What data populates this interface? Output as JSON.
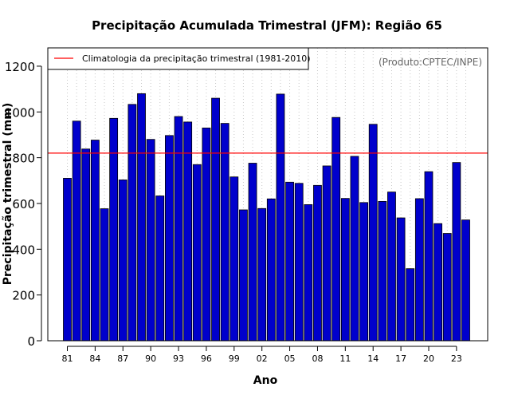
{
  "chart_data": {
    "type": "bar",
    "title": "Precipitação Acumulada Trimestral (JFM): Região 65",
    "xlabel": "Ano",
    "ylabel": "Precipitação trimestral (mm)",
    "ylim": [
      0,
      1280
    ],
    "yticks": [
      0,
      200,
      400,
      600,
      800,
      1000,
      1200
    ],
    "categories": [
      "1981",
      "1982",
      "1983",
      "1984",
      "1985",
      "1986",
      "1987",
      "1988",
      "1989",
      "1990",
      "1991",
      "1992",
      "1993",
      "1994",
      "1995",
      "1996",
      "1997",
      "1998",
      "1999",
      "2000",
      "2001",
      "2002",
      "2003",
      "2004",
      "2005",
      "2006",
      "2007",
      "2008",
      "2009",
      "2010",
      "2011",
      "2012",
      "2013",
      "2014",
      "2015",
      "2016",
      "2017",
      "2018",
      "2019",
      "2020",
      "2021",
      "2022",
      "2023",
      "2024"
    ],
    "x_tick_labels": [
      "81",
      "84",
      "87",
      "90",
      "93",
      "96",
      "99",
      "02",
      "05",
      "08",
      "11",
      "14",
      "17",
      "20",
      "23"
    ],
    "x_tick_every": 3,
    "values": [
      710,
      960,
      838,
      877,
      577,
      972,
      703,
      1033,
      1080,
      880,
      633,
      897,
      980,
      956,
      770,
      930,
      1060,
      950,
      716,
      572,
      776,
      578,
      620,
      1078,
      693,
      688,
      595,
      679,
      764,
      976,
      622,
      806,
      604,
      946,
      609,
      650,
      537,
      315,
      621,
      739,
      512,
      469,
      779,
      528
    ],
    "climatology": {
      "value": 820,
      "label": "Climatologia da precipitação trimestral (1981-2010)",
      "color": "#ff0000"
    },
    "legend_position": "top-left",
    "credit": "(Produto:CPTEC/INPE)",
    "bar_color": "#0000cc",
    "grid": "vertical-dotted"
  }
}
